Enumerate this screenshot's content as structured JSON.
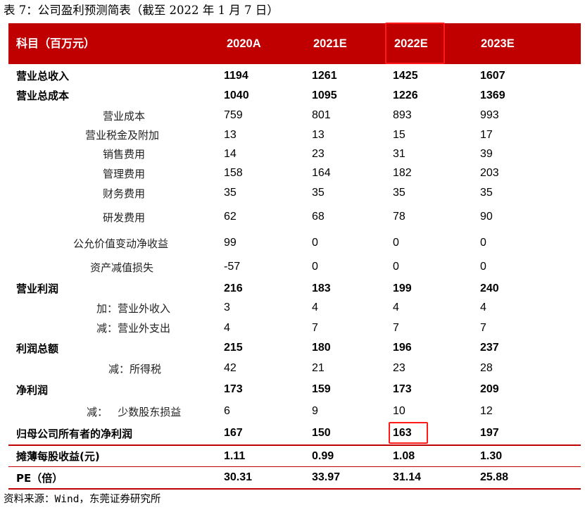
{
  "caption": "表 7：公司盈利预测简表（截至 2022 年 1 月 7 日）",
  "header": {
    "label": "科目（百万元）",
    "years": [
      "2020A",
      "2021E",
      "2022E",
      "2023E"
    ]
  },
  "rows": [
    {
      "label": "营业总收入",
      "values": [
        "1194",
        "1261",
        "1425",
        "1607"
      ]
    },
    {
      "label": "营业总成本",
      "values": [
        "1040",
        "1095",
        "1226",
        "1369"
      ]
    },
    {
      "label": "营业成本",
      "values": [
        "759",
        "801",
        "893",
        "993"
      ]
    },
    {
      "label": "营业税金及附加",
      "values": [
        "13",
        "13",
        "15",
        "17"
      ]
    },
    {
      "label": "销售费用",
      "values": [
        "14",
        "23",
        "31",
        "39"
      ]
    },
    {
      "label": "管理费用",
      "values": [
        "158",
        "164",
        "182",
        "203"
      ]
    },
    {
      "label": "财务费用",
      "values": [
        "35",
        "35",
        "35",
        "35"
      ]
    },
    {
      "label": "研发费用",
      "values": [
        "62",
        "68",
        "78",
        "90"
      ]
    },
    {
      "label": "公允价值变动净收益",
      "values": [
        "99",
        "0",
        "0",
        "0"
      ]
    },
    {
      "label": "资产减值损失",
      "values": [
        "-57",
        "0",
        "0",
        "0"
      ]
    },
    {
      "label": "营业利润",
      "values": [
        "216",
        "183",
        "199",
        "240"
      ]
    },
    {
      "label": "加：营业外收入",
      "values": [
        "3",
        "4",
        "4",
        "4"
      ]
    },
    {
      "label": "减：营业外支出",
      "values": [
        "4",
        "7",
        "7",
        "7"
      ]
    },
    {
      "label": "利润总额",
      "values": [
        "215",
        "180",
        "196",
        "237"
      ]
    },
    {
      "label": "减：所得税",
      "values": [
        "42",
        "21",
        "23",
        "28"
      ]
    },
    {
      "label": "净利润",
      "values": [
        "173",
        "159",
        "173",
        "209"
      ]
    },
    {
      "label": "减：   少数股东损益",
      "values": [
        "6",
        "9",
        "10",
        "12"
      ]
    },
    {
      "label": "归母公司所有者的净利润",
      "values": [
        "167",
        "150",
        "163",
        "197"
      ]
    },
    {
      "label": "摊薄每股收益(元)",
      "values": [
        "1.11",
        "0.99",
        "1.08",
        "1.30"
      ]
    },
    {
      "label": "PE（倍）",
      "values": [
        "30.31",
        "33.97",
        "31.14",
        "25.88"
      ]
    }
  ],
  "source": "资料来源：Wind，东莞证券研究所",
  "colors": {
    "header_bg": "#c00000",
    "highlight": "#ff1a1a"
  }
}
